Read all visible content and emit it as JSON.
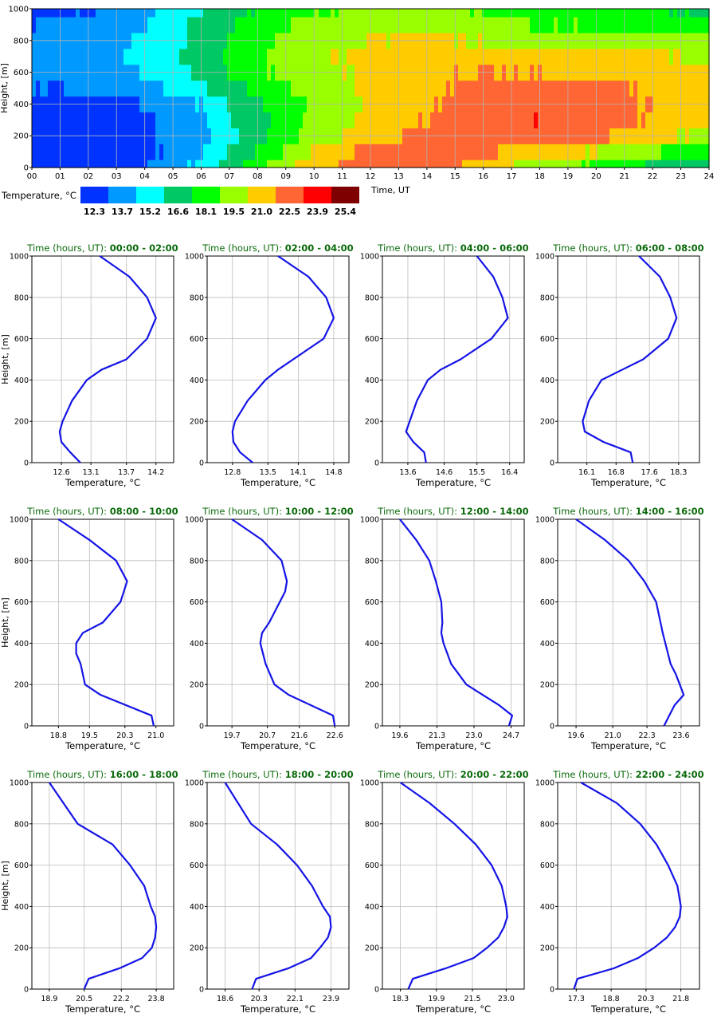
{
  "chart_data": [
    {
      "type": "heatmap",
      "xlabel": "Time, UT",
      "ylabel": "Height, [m]",
      "x_tick_labels": [
        "00",
        "01",
        "02",
        "03",
        "04",
        "05",
        "06",
        "07",
        "08",
        "09",
        "10",
        "11",
        "12",
        "13",
        "14",
        "15",
        "16",
        "17",
        "18",
        "19",
        "20",
        "21",
        "22",
        "23",
        "24"
      ],
      "y_tick_labels": [
        "0",
        "200",
        "400",
        "600",
        "800",
        "1000"
      ],
      "xlim": [
        0,
        24
      ],
      "ylim": [
        0,
        1000
      ],
      "grid": true,
      "height_levels": [
        0,
        50,
        150,
        250,
        350,
        450,
        550,
        650,
        750,
        850,
        950,
        1000
      ],
      "time_knots": [
        0,
        2,
        4,
        6,
        8,
        10,
        12,
        14,
        16,
        18,
        20,
        22,
        24
      ],
      "colorbar": {
        "label": "Temperature, °C",
        "placement": "bottom-left",
        "colors": [
          "#0033ff",
          "#0099ff",
          "#00ffff",
          "#00c864",
          "#00ff00",
          "#99ff00",
          "#ffcc00",
          "#ff6633",
          "#ff0000",
          "#7f0000"
        ],
        "tick_labels": [
          "12.3",
          "13.7",
          "15.2",
          "16.6",
          "18.1",
          "19.5",
          "21.0",
          "22.5",
          "23.9",
          "25.4"
        ],
        "bounds": [
          12.3,
          13.7,
          15.2,
          16.6,
          18.1,
          19.5,
          21.0,
          22.5,
          23.9,
          25.4
        ]
      }
    },
    {
      "type": "line",
      "title_prefix": "Time (hours, UT): ",
      "title_range": "00:00 - 02:00",
      "xlabel": "Temperature, °C",
      "ylabel": "Height, [m]",
      "xlim": [
        12.1,
        14.5
      ],
      "ylim": [
        0,
        1000
      ],
      "x_ticks": [
        12.6,
        13.1,
        13.7,
        14.2
      ],
      "x_tick_labels": [
        "12.6",
        "13.1",
        "13.7",
        "14.2"
      ],
      "y_ticks": [
        0,
        200,
        400,
        600,
        800,
        1000
      ],
      "y_tick_labels": [
        "0",
        "200",
        "400",
        "600",
        "800",
        "1000"
      ],
      "series": [
        {
          "x": [
            12.92,
            12.75,
            12.6,
            12.57,
            12.62,
            12.78,
            13.03,
            13.28,
            13.7,
            14.05,
            14.2,
            14.05,
            13.75,
            13.25
          ],
          "y": [
            0,
            50,
            100,
            150,
            200,
            300,
            400,
            450,
            500,
            600,
            700,
            800,
            900,
            1000
          ]
        }
      ]
    },
    {
      "type": "line",
      "title_prefix": "Time (hours, UT): ",
      "title_range": "02:00 - 04:00",
      "xlabel": "Temperature, °C",
      "ylabel": "",
      "xlim": [
        12.3,
        15.1
      ],
      "ylim": [
        0,
        1000
      ],
      "x_ticks": [
        12.8,
        13.5,
        14.1,
        14.8
      ],
      "x_tick_labels": [
        "12.8",
        "13.5",
        "14.1",
        "14.8"
      ],
      "y_ticks": [
        0,
        200,
        400,
        600,
        800,
        1000
      ],
      "y_tick_labels": [
        "0",
        "200",
        "400",
        "600",
        "800",
        "1000"
      ],
      "series": [
        {
          "x": [
            13.2,
            12.95,
            12.82,
            12.8,
            12.85,
            13.1,
            13.45,
            13.7,
            14.0,
            14.6,
            14.8,
            14.65,
            14.3,
            13.7
          ],
          "y": [
            0,
            50,
            100,
            150,
            200,
            300,
            400,
            450,
            500,
            600,
            700,
            800,
            900,
            1000
          ]
        }
      ]
    },
    {
      "type": "line",
      "title_prefix": "Time (hours, UT): ",
      "title_range": "04:00 - 06:00",
      "xlabel": "Temperature, °C",
      "ylabel": "",
      "xlim": [
        12.9,
        16.8
      ],
      "ylim": [
        0,
        1000
      ],
      "x_ticks": [
        13.6,
        14.6,
        15.5,
        16.4
      ],
      "x_tick_labels": [
        "13.6",
        "14.6",
        "15.5",
        "16.4"
      ],
      "y_ticks": [
        0,
        200,
        400,
        600,
        800,
        1000
      ],
      "y_tick_labels": [
        "0",
        "200",
        "400",
        "600",
        "800",
        "1000"
      ],
      "series": [
        {
          "x": [
            14.1,
            14.05,
            13.75,
            13.55,
            13.65,
            13.85,
            14.15,
            14.5,
            15.05,
            15.9,
            16.35,
            16.2,
            15.95,
            15.5
          ],
          "y": [
            0,
            50,
            100,
            150,
            200,
            300,
            400,
            450,
            500,
            600,
            700,
            800,
            900,
            1000
          ]
        }
      ]
    },
    {
      "type": "line",
      "title_prefix": "Time (hours, UT): ",
      "title_range": "06:00 - 08:00",
      "xlabel": "Temperature, °C",
      "ylabel": "",
      "xlim": [
        15.4,
        18.8
      ],
      "ylim": [
        0,
        1000
      ],
      "x_ticks": [
        16.1,
        16.8,
        17.6,
        18.3
      ],
      "x_tick_labels": [
        "16.1",
        "16.8",
        "17.6",
        "18.3"
      ],
      "y_ticks": [
        0,
        200,
        400,
        600,
        800,
        1000
      ],
      "y_tick_labels": [
        "0",
        "200",
        "400",
        "600",
        "800",
        "1000"
      ],
      "series": [
        {
          "x": [
            17.2,
            17.15,
            16.5,
            16.05,
            16.0,
            16.15,
            16.45,
            16.95,
            17.45,
            18.05,
            18.25,
            18.1,
            17.85,
            17.35
          ],
          "y": [
            0,
            50,
            100,
            150,
            200,
            300,
            400,
            450,
            500,
            600,
            700,
            800,
            900,
            1000
          ]
        }
      ]
    },
    {
      "type": "line",
      "title_prefix": "Time (hours, UT): ",
      "title_range": "08:00 - 10:00",
      "xlabel": "Temperature, °C",
      "ylabel": "Height, [m]",
      "xlim": [
        18.2,
        21.4
      ],
      "ylim": [
        0,
        1000
      ],
      "x_ticks": [
        18.8,
        19.5,
        20.3,
        21.0
      ],
      "x_tick_labels": [
        "18.8",
        "19.5",
        "20.3",
        "21.0"
      ],
      "y_ticks": [
        0,
        200,
        400,
        600,
        800,
        1000
      ],
      "y_tick_labels": [
        "0",
        "200",
        "400",
        "600",
        "800",
        "1000"
      ],
      "series": [
        {
          "x": [
            20.95,
            20.9,
            19.75,
            19.4,
            19.3,
            19.2,
            19.2,
            19.35,
            19.8,
            20.2,
            20.35,
            20.1,
            19.5,
            18.8
          ],
          "y": [
            0,
            50,
            150,
            200,
            300,
            350,
            400,
            450,
            500,
            600,
            700,
            800,
            900,
            1000
          ]
        }
      ]
    },
    {
      "type": "line",
      "title_prefix": "Time (hours, UT): ",
      "title_range": "10:00 - 12:00",
      "xlabel": "Temperature, °C",
      "ylabel": "",
      "xlim": [
        19.0,
        23.0
      ],
      "ylim": [
        0,
        1000
      ],
      "x_ticks": [
        19.7,
        20.7,
        21.6,
        22.6
      ],
      "x_tick_labels": [
        "19.7",
        "20.7",
        "21.6",
        "22.6"
      ],
      "y_ticks": [
        0,
        200,
        400,
        600,
        800,
        1000
      ],
      "y_tick_labels": [
        "0",
        "200",
        "400",
        "600",
        "800",
        "1000"
      ],
      "series": [
        {
          "x": [
            22.6,
            22.55,
            21.3,
            20.9,
            20.65,
            20.5,
            20.55,
            20.75,
            21.05,
            21.2,
            21.25,
            21.1,
            20.55,
            19.7
          ],
          "y": [
            0,
            50,
            150,
            200,
            300,
            400,
            450,
            500,
            600,
            650,
            700,
            800,
            900,
            1000
          ]
        }
      ]
    },
    {
      "type": "line",
      "title_prefix": "Time (hours, UT): ",
      "title_range": "12:00 - 14:00",
      "xlabel": "Temperature, °C",
      "ylabel": "",
      "xlim": [
        18.8,
        25.3
      ],
      "ylim": [
        0,
        1000
      ],
      "x_ticks": [
        19.6,
        21.3,
        23.0,
        24.7
      ],
      "x_tick_labels": [
        "19.6",
        "21.3",
        "23.0",
        "24.7"
      ],
      "y_ticks": [
        0,
        200,
        400,
        600,
        800,
        1000
      ],
      "y_tick_labels": [
        "0",
        "200",
        "400",
        "600",
        "800",
        "1000"
      ],
      "series": [
        {
          "x": [
            24.6,
            24.75,
            24.15,
            23.4,
            22.65,
            21.95,
            21.6,
            21.5,
            21.55,
            21.5,
            21.25,
            20.95,
            20.35,
            19.6
          ],
          "y": [
            0,
            50,
            100,
            150,
            200,
            300,
            400,
            450,
            500,
            600,
            700,
            800,
            900,
            1000
          ]
        }
      ]
    },
    {
      "type": "line",
      "title_prefix": "Time (hours, UT): ",
      "title_range": "14:00 - 16:00",
      "xlabel": "Temperature, °C",
      "ylabel": "",
      "xlim": [
        18.9,
        24.3
      ],
      "ylim": [
        0,
        1000
      ],
      "x_ticks": [
        19.6,
        21.0,
        22.3,
        23.6
      ],
      "x_tick_labels": [
        "19.6",
        "21.0",
        "22.3",
        "23.6"
      ],
      "y_ticks": [
        0,
        200,
        400,
        600,
        800,
        1000
      ],
      "y_tick_labels": [
        "0",
        "200",
        "400",
        "600",
        "800",
        "1000"
      ],
      "series": [
        {
          "x": [
            22.95,
            23.15,
            23.35,
            23.7,
            23.55,
            23.4,
            23.2,
            23.0,
            22.9,
            22.65,
            22.2,
            21.6,
            20.7,
            19.6
          ],
          "y": [
            0,
            50,
            100,
            150,
            200,
            250,
            300,
            400,
            450,
            600,
            700,
            800,
            900,
            1000
          ]
        }
      ]
    },
    {
      "type": "line",
      "title_prefix": "Time (hours, UT): ",
      "title_range": "16:00 - 18:00",
      "xlabel": "Temperature, °C",
      "ylabel": "Height, [m]",
      "xlim": [
        18.1,
        24.6
      ],
      "ylim": [
        0,
        1000
      ],
      "x_ticks": [
        18.9,
        20.5,
        22.2,
        23.8
      ],
      "x_tick_labels": [
        "18.9",
        "20.5",
        "22.2",
        "23.8"
      ],
      "y_ticks": [
        0,
        200,
        400,
        600,
        800,
        1000
      ],
      "y_tick_labels": [
        "0",
        "200",
        "400",
        "600",
        "800",
        "1000"
      ],
      "series": [
        {
          "x": [
            20.5,
            20.7,
            22.1,
            23.15,
            23.6,
            23.75,
            23.8,
            23.75,
            23.55,
            23.25,
            22.6,
            21.8,
            20.2,
            18.9
          ],
          "y": [
            0,
            50,
            100,
            150,
            200,
            250,
            300,
            350,
            400,
            500,
            600,
            700,
            800,
            1000
          ]
        }
      ]
    },
    {
      "type": "line",
      "title_prefix": "Time (hours, UT): ",
      "title_range": "18:00 - 20:00",
      "xlabel": "Temperature, °C",
      "ylabel": "",
      "xlim": [
        17.7,
        24.8
      ],
      "ylim": [
        0,
        1000
      ],
      "x_ticks": [
        18.6,
        20.3,
        22.1,
        23.9
      ],
      "x_tick_labels": [
        "18.6",
        "20.3",
        "22.1",
        "23.9"
      ],
      "y_ticks": [
        0,
        200,
        400,
        600,
        800,
        1000
      ],
      "y_tick_labels": [
        "0",
        "200",
        "400",
        "600",
        "800",
        "1000"
      ],
      "series": [
        {
          "x": [
            19.95,
            20.15,
            21.75,
            22.9,
            23.35,
            23.75,
            23.9,
            23.85,
            23.5,
            22.95,
            22.2,
            21.2,
            19.9,
            18.6
          ],
          "y": [
            0,
            50,
            100,
            150,
            200,
            250,
            300,
            350,
            400,
            500,
            600,
            700,
            800,
            1000
          ]
        }
      ]
    },
    {
      "type": "line",
      "title_prefix": "Time (hours, UT): ",
      "title_range": "20:00 - 22:00",
      "xlabel": "Temperature, °C",
      "ylabel": "",
      "xlim": [
        17.5,
        23.8
      ],
      "ylim": [
        0,
        1000
      ],
      "x_ticks": [
        18.3,
        19.9,
        21.5,
        23.0
      ],
      "x_tick_labels": [
        "18.3",
        "19.9",
        "21.5",
        "23.0"
      ],
      "y_ticks": [
        0,
        200,
        400,
        600,
        800,
        1000
      ],
      "y_tick_labels": [
        "0",
        "200",
        "400",
        "600",
        "800",
        "1000"
      ],
      "series": [
        {
          "x": [
            18.65,
            18.85,
            20.3,
            21.55,
            22.15,
            22.65,
            22.9,
            23.05,
            23.0,
            22.8,
            22.35,
            21.65,
            20.7,
            19.6,
            18.3
          ],
          "y": [
            0,
            50,
            100,
            150,
            200,
            250,
            300,
            350,
            400,
            500,
            600,
            700,
            800,
            900,
            1000
          ]
        }
      ]
    },
    {
      "type": "line",
      "title_prefix": "Time (hours, UT): ",
      "title_range": "22:00 - 24:00",
      "xlabel": "Temperature, °C",
      "ylabel": "",
      "xlim": [
        16.5,
        22.6
      ],
      "ylim": [
        0,
        1000
      ],
      "x_ticks": [
        17.3,
        18.8,
        20.3,
        21.8
      ],
      "x_tick_labels": [
        "17.3",
        "18.8",
        "20.3",
        "21.8"
      ],
      "y_ticks": [
        0,
        200,
        400,
        600,
        800,
        1000
      ],
      "y_tick_labels": [
        "0",
        "200",
        "400",
        "600",
        "800",
        "1000"
      ],
      "series": [
        {
          "x": [
            17.2,
            17.35,
            18.9,
            19.95,
            20.65,
            21.2,
            21.55,
            21.75,
            21.8,
            21.65,
            21.25,
            20.75,
            20.05,
            19.05,
            17.5
          ],
          "y": [
            0,
            50,
            100,
            150,
            200,
            250,
            300,
            350,
            400,
            500,
            600,
            700,
            800,
            900,
            1000
          ]
        }
      ]
    }
  ]
}
